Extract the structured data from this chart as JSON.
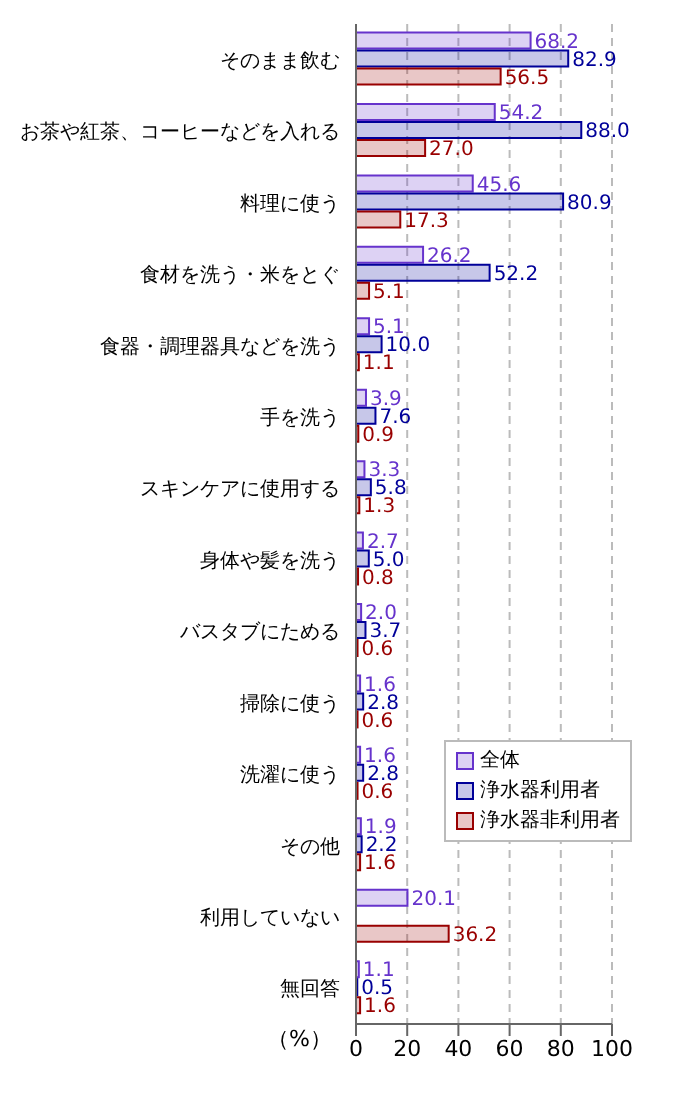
{
  "chart_data": {
    "type": "bar",
    "orientation": "horizontal",
    "categories": [
      "そのまま飲む",
      "お茶や紅茶、コーヒーなどを入れる",
      "料理に使う",
      "食材を洗う・米をとぐ",
      "食器・調理器具などを洗う",
      "手を洗う",
      "スキンケアに使用する",
      "身体や髪を洗う",
      "バスタブにためる",
      "掃除に使う",
      "洗濯に使う",
      "その他",
      "利用していない",
      "無回答"
    ],
    "series": [
      {
        "name": "全体",
        "color": "#6633cc",
        "values": [
          68.2,
          54.2,
          45.6,
          26.2,
          5.1,
          3.9,
          3.3,
          2.7,
          2.0,
          1.6,
          1.6,
          1.9,
          20.1,
          1.1
        ],
        "value_labels": [
          "68.2",
          "54.2",
          "45.6",
          "26.2",
          "5.1",
          "3.9",
          "3.3",
          "2.7",
          "2.0",
          "1.6",
          "1.6",
          "1.9",
          "20.1",
          "1.1"
        ]
      },
      {
        "name": "浄水器利用者",
        "color": "#000099",
        "values": [
          82.9,
          88.0,
          80.9,
          52.2,
          10.0,
          7.6,
          5.8,
          5.0,
          3.7,
          2.8,
          2.8,
          2.2,
          null,
          0.5
        ],
        "value_labels": [
          "82.9",
          "88.0",
          "80.9",
          "52.2",
          "10.0",
          "7.6",
          "5.8",
          "5.0",
          "3.7",
          "2.8",
          "2.8",
          "2.2",
          null,
          "0.5"
        ]
      },
      {
        "name": "浄水器非利用者",
        "color": "#990000",
        "values": [
          56.5,
          27.0,
          17.3,
          5.1,
          1.1,
          0.9,
          1.3,
          0.8,
          0.6,
          0.6,
          0.6,
          1.6,
          36.2,
          1.6
        ],
        "value_labels": [
          "56.5",
          "27.0",
          "17.3",
          "5.1",
          "1.1",
          "0.9",
          "1.3",
          "0.8",
          "0.6",
          "0.6",
          "0.6",
          "1.6",
          "36.2",
          "1.6"
        ]
      }
    ],
    "xlabel": "（%）",
    "xlim": [
      0,
      100
    ],
    "xticks": [
      0,
      20,
      40,
      60,
      80,
      100
    ],
    "grid": "x",
    "legend": "bottom right"
  }
}
